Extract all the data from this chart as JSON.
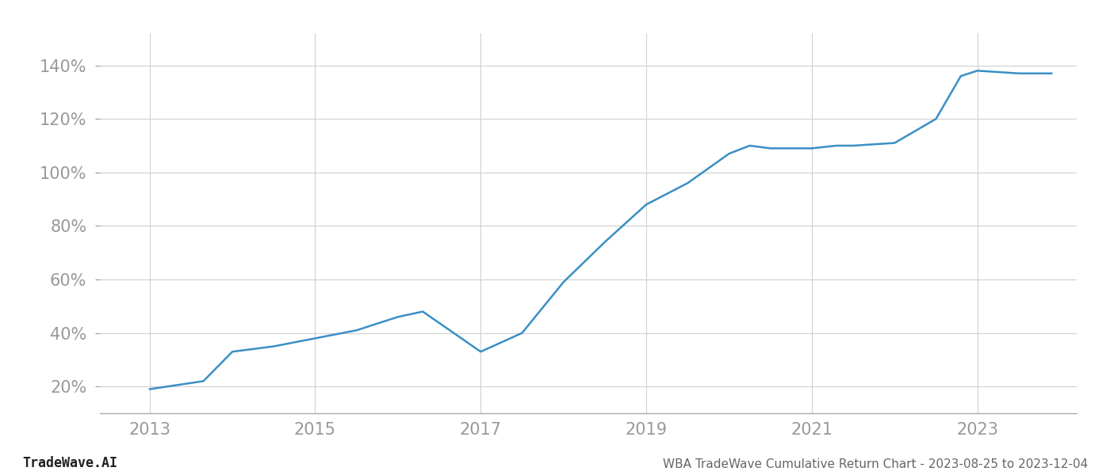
{
  "x_values": [
    2013,
    2013.65,
    2014.0,
    2014.5,
    2015.0,
    2015.5,
    2016.0,
    2016.3,
    2017.0,
    2017.5,
    2018.0,
    2018.5,
    2019.0,
    2019.5,
    2020.0,
    2020.25,
    2020.5,
    2021.0,
    2021.3,
    2021.5,
    2022.0,
    2022.5,
    2022.8,
    2023.0,
    2023.5,
    2023.9
  ],
  "y_values": [
    19,
    22,
    33,
    35,
    38,
    41,
    46,
    48,
    33,
    40,
    59,
    74,
    88,
    96,
    107,
    110,
    109,
    109,
    110,
    110,
    111,
    120,
    136,
    138,
    137,
    137
  ],
  "line_color": "#3a8fc4",
  "background_color": "#ffffff",
  "grid_color": "#d0d0d0",
  "axis_color": "#aaaaaa",
  "tick_color": "#999999",
  "footer_left": "TradeWave.AI",
  "footer_right": "WBA TradeWave Cumulative Return Chart - 2023-08-25 to 2023-12-04",
  "footer_color": "#666666",
  "footer_left_color": "#222222",
  "x_ticks": [
    2013,
    2015,
    2017,
    2019,
    2021,
    2023
  ],
  "y_ticks": [
    20,
    40,
    60,
    80,
    100,
    120,
    140
  ],
  "xlim": [
    2012.4,
    2024.2
  ],
  "ylim": [
    10,
    152
  ]
}
